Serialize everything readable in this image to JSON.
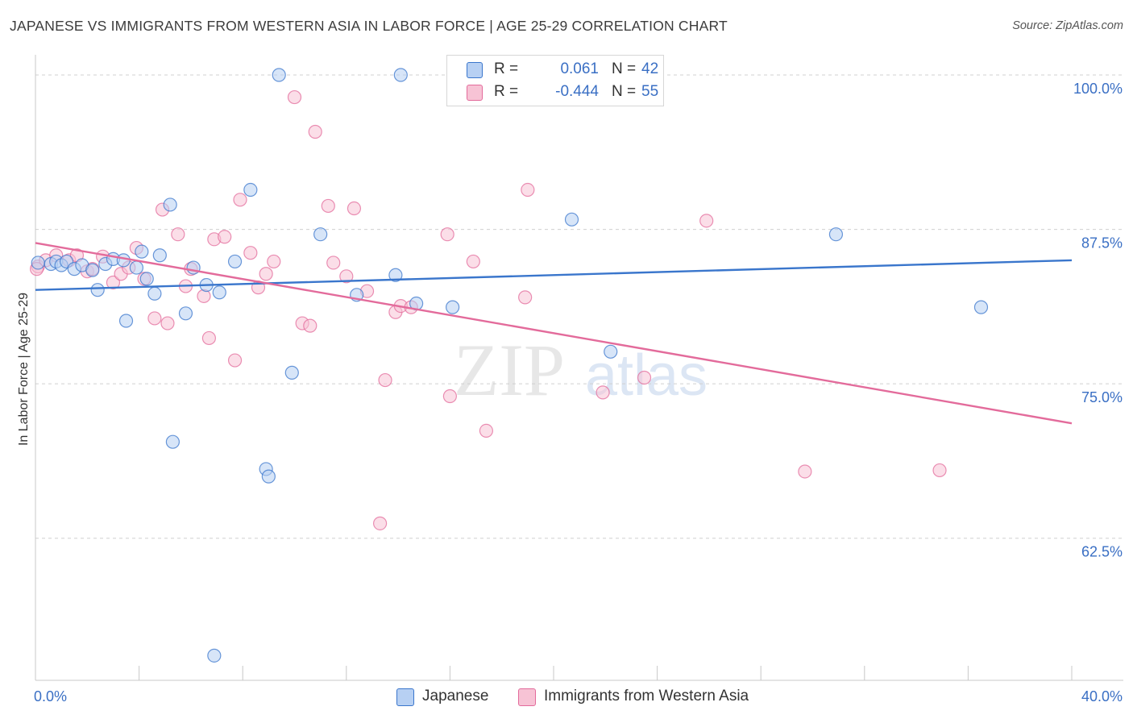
{
  "title": "JAPANESE VS IMMIGRANTS FROM WESTERN ASIA IN LABOR FORCE | AGE 25-29 CORRELATION CHART",
  "source": "Source: ZipAtlas.com",
  "watermark": {
    "zip": "ZIP",
    "atlas": "atlas"
  },
  "colors": {
    "blue": "#3a76cc",
    "blue_fill": "#b7d0f3",
    "pink": "#e36b9b",
    "pink_fill": "#f7c3d5",
    "tick": "#3a6fc4",
    "grid": "#d0d0d0"
  },
  "legend_top": [
    {
      "r_label": "R =",
      "r_value": "0.061",
      "n_label": "N =",
      "n_value": "42"
    },
    {
      "r_label": "R =",
      "r_value": "-0.444",
      "n_label": "N =",
      "n_value": "55"
    }
  ],
  "legend_bottom": [
    "Japanese",
    "Immigrants from Western Asia"
  ],
  "chart_data": {
    "type": "scatter",
    "title": "JAPANESE VS IMMIGRANTS FROM WESTERN ASIA IN LABOR FORCE | AGE 25-29 CORRELATION CHART",
    "xlabel": "",
    "ylabel": "In Labor Force | Age 25-29",
    "xlim": [
      0,
      40
    ],
    "ylim": [
      51,
      101.5
    ],
    "x_tick_labels": [
      {
        "value": 0,
        "label": "0.0%"
      },
      {
        "value": 40,
        "label": "40.0%"
      }
    ],
    "y_tick_labels": [
      {
        "value": 100,
        "label": "100.0%"
      },
      {
        "value": 87.5,
        "label": "87.5%"
      },
      {
        "value": 75,
        "label": "75.0%"
      },
      {
        "value": 62.5,
        "label": "62.5%"
      }
    ],
    "grid": "horizontal dashed",
    "legend": "top-center",
    "series": [
      {
        "name": "Japanese",
        "color": "#3a76cc",
        "trend": {
          "x": [
            0,
            40
          ],
          "y": [
            82.6,
            85.0
          ]
        },
        "points": [
          [
            0.1,
            84.8
          ],
          [
            0.6,
            84.7
          ],
          [
            0.8,
            84.9
          ],
          [
            1.0,
            84.6
          ],
          [
            1.2,
            84.9
          ],
          [
            1.5,
            84.3
          ],
          [
            1.8,
            84.6
          ],
          [
            2.2,
            84.2
          ],
          [
            2.4,
            82.6
          ],
          [
            2.7,
            84.7
          ],
          [
            3.0,
            85.1
          ],
          [
            3.4,
            85.0
          ],
          [
            3.5,
            80.1
          ],
          [
            3.9,
            84.4
          ],
          [
            4.1,
            85.7
          ],
          [
            4.3,
            83.5
          ],
          [
            4.6,
            82.3
          ],
          [
            4.8,
            85.4
          ],
          [
            5.2,
            89.5
          ],
          [
            5.3,
            70.3
          ],
          [
            5.8,
            80.7
          ],
          [
            6.1,
            84.4
          ],
          [
            6.6,
            83.0
          ],
          [
            6.9,
            53.0
          ],
          [
            7.1,
            82.4
          ],
          [
            7.7,
            84.9
          ],
          [
            8.3,
            90.7
          ],
          [
            8.9,
            68.1
          ],
          [
            9.0,
            67.5
          ],
          [
            9.4,
            100.0
          ],
          [
            9.9,
            75.9
          ],
          [
            11.0,
            87.1
          ],
          [
            12.4,
            82.2
          ],
          [
            13.9,
            83.8
          ],
          [
            14.1,
            100.0
          ],
          [
            14.7,
            81.5
          ],
          [
            16.1,
            81.2
          ],
          [
            17.2,
            98.7
          ],
          [
            20.7,
            88.3
          ],
          [
            22.2,
            77.6
          ],
          [
            30.9,
            87.1
          ],
          [
            36.5,
            81.2
          ]
        ]
      },
      {
        "name": "Immigrants from Western Asia",
        "color": "#e36b9b",
        "trend": {
          "x": [
            0,
            40
          ],
          "y": [
            86.4,
            71.8
          ]
        },
        "points": [
          [
            0.1,
            84.5
          ],
          [
            0.4,
            85.0
          ],
          [
            0.8,
            85.4
          ],
          [
            1.3,
            85.0
          ],
          [
            1.6,
            85.4
          ],
          [
            2.0,
            84.1
          ],
          [
            2.2,
            84.3
          ],
          [
            2.6,
            85.3
          ],
          [
            3.0,
            83.2
          ],
          [
            3.3,
            83.9
          ],
          [
            3.6,
            84.4
          ],
          [
            3.9,
            86.0
          ],
          [
            4.2,
            83.5
          ],
          [
            4.6,
            80.3
          ],
          [
            4.9,
            89.1
          ],
          [
            5.1,
            79.9
          ],
          [
            5.5,
            87.1
          ],
          [
            5.8,
            82.9
          ],
          [
            6.0,
            84.3
          ],
          [
            6.5,
            82.1
          ],
          [
            6.7,
            78.7
          ],
          [
            6.9,
            86.7
          ],
          [
            7.3,
            86.9
          ],
          [
            7.7,
            76.9
          ],
          [
            7.9,
            89.9
          ],
          [
            8.3,
            85.6
          ],
          [
            8.6,
            82.8
          ],
          [
            8.9,
            83.9
          ],
          [
            9.2,
            84.9
          ],
          [
            10.0,
            98.2
          ],
          [
            10.3,
            79.9
          ],
          [
            10.6,
            79.7
          ],
          [
            10.8,
            95.4
          ],
          [
            11.3,
            89.4
          ],
          [
            11.5,
            84.8
          ],
          [
            12.0,
            83.7
          ],
          [
            12.3,
            89.2
          ],
          [
            12.8,
            82.5
          ],
          [
            13.5,
            75.3
          ],
          [
            13.3,
            63.7
          ],
          [
            13.9,
            80.8
          ],
          [
            14.1,
            81.3
          ],
          [
            14.5,
            81.2
          ],
          [
            15.9,
            87.1
          ],
          [
            16.0,
            74.0
          ],
          [
            16.9,
            84.9
          ],
          [
            17.4,
            71.2
          ],
          [
            18.9,
            82.0
          ],
          [
            19.0,
            90.7
          ],
          [
            21.9,
            74.3
          ],
          [
            23.5,
            75.5
          ],
          [
            25.9,
            88.2
          ],
          [
            29.7,
            67.9
          ],
          [
            34.9,
            68.0
          ],
          [
            0.05,
            84.3
          ]
        ]
      }
    ]
  }
}
